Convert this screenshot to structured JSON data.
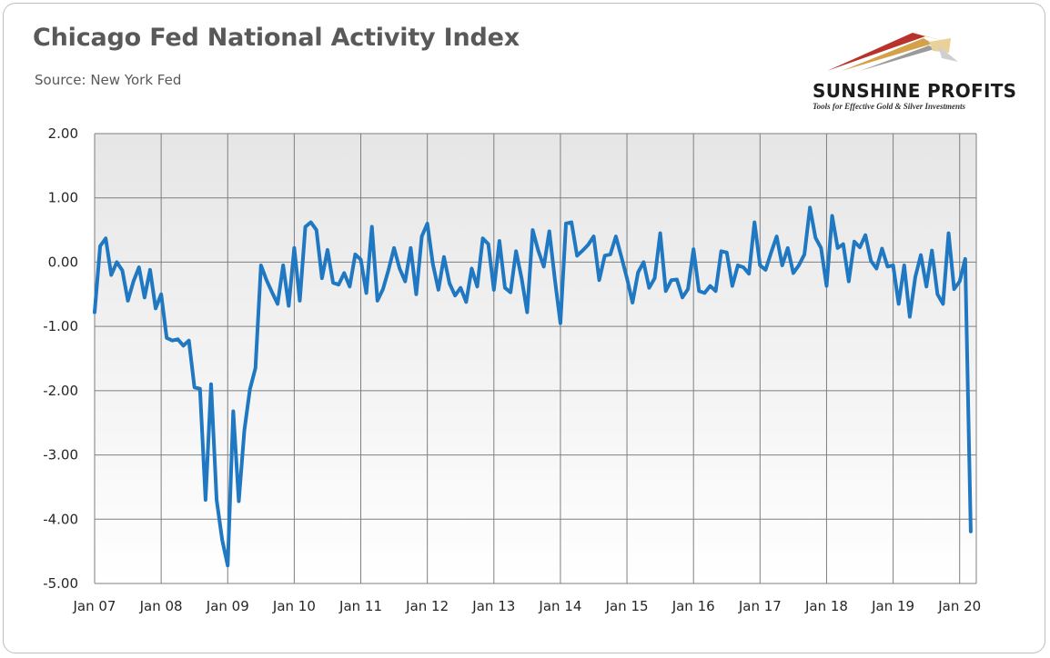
{
  "title": "Chicago Fed National Activity Index",
  "source": "Source: New York Fed",
  "brand": {
    "name": "SUNSHINE PROFITS",
    "tagline": "Tools for Effective Gold & Silver Investments"
  },
  "colors": {
    "line": "#1f78c1",
    "grid": "#7f7f7f",
    "plot_top": "#e6e6e6",
    "plot_bottom": "#ffffff"
  },
  "chart_data": {
    "type": "line",
    "title": "Chicago Fed National Activity Index",
    "xlabel": "",
    "ylabel": "",
    "ylim": [
      -5,
      2
    ],
    "y_ticks": [
      "2.00",
      "1.00",
      "0.00",
      "-1.00",
      "-2.00",
      "-3.00",
      "-4.00",
      "-5.00"
    ],
    "x_ticks": [
      "Jan 07",
      "Jan 08",
      "Jan 09",
      "Jan 10",
      "Jan 11",
      "Jan 12",
      "Jan 13",
      "Jan 14",
      "Jan 15",
      "Jan 16",
      "Jan 17",
      "Jan 18",
      "Jan 19",
      "Jan 20"
    ],
    "x_range": [
      "2007-01",
      "2020-04"
    ],
    "grid": true,
    "series": [
      {
        "start": "2007-01",
        "values": [
          -0.78,
          0.25,
          0.37,
          -0.2,
          0.0,
          -0.13,
          -0.6,
          -0.3,
          -0.08,
          -0.55,
          -0.12,
          -0.72,
          -0.5,
          -1.18,
          -1.22,
          -1.2,
          -1.3,
          -1.22,
          -1.95,
          -1.97,
          -3.7,
          -1.9,
          -3.7,
          -4.32,
          -4.72,
          -2.32,
          -3.72,
          -2.62,
          -1.98,
          -1.65,
          -0.05,
          -0.28,
          -0.47,
          -0.65,
          -0.05,
          -0.68,
          0.22,
          -0.6,
          0.55,
          0.62,
          0.5,
          -0.25,
          0.19,
          -0.32,
          -0.35,
          -0.17,
          -0.38,
          0.12,
          0.04,
          -0.48,
          0.55,
          -0.6,
          -0.42,
          -0.12,
          0.22,
          -0.1,
          -0.3,
          0.22,
          -0.5,
          0.4,
          0.6,
          -0.03,
          -0.43,
          0.08,
          -0.33,
          -0.52,
          -0.4,
          -0.62,
          -0.1,
          -0.38,
          0.37,
          0.28,
          -0.43,
          0.33,
          -0.4,
          -0.47,
          0.17,
          -0.25,
          -0.78,
          0.5,
          0.18,
          -0.07,
          0.48,
          -0.27,
          -0.95,
          0.6,
          0.62,
          0.1,
          0.18,
          0.27,
          0.4,
          -0.28,
          0.1,
          0.12,
          0.4,
          0.08,
          -0.25,
          -0.63,
          -0.16,
          0.0,
          -0.4,
          -0.25,
          0.45,
          -0.45,
          -0.28,
          -0.27,
          -0.55,
          -0.42,
          0.2,
          -0.45,
          -0.48,
          -0.37,
          -0.45,
          0.17,
          0.15,
          -0.37,
          -0.05,
          -0.08,
          -0.18,
          0.62,
          -0.05,
          -0.12,
          0.15,
          0.4,
          -0.05,
          0.22,
          -0.17,
          -0.05,
          0.12,
          0.85,
          0.38,
          0.22,
          -0.37,
          0.72,
          0.22,
          0.28,
          -0.3,
          0.32,
          0.23,
          0.42,
          0.02,
          -0.1,
          0.21,
          -0.07,
          -0.05,
          -0.65,
          -0.05,
          -0.85,
          -0.23,
          0.11,
          -0.38,
          0.18,
          -0.5,
          -0.65,
          0.45,
          -0.42,
          -0.3,
          0.05,
          -4.19
        ]
      }
    ]
  }
}
